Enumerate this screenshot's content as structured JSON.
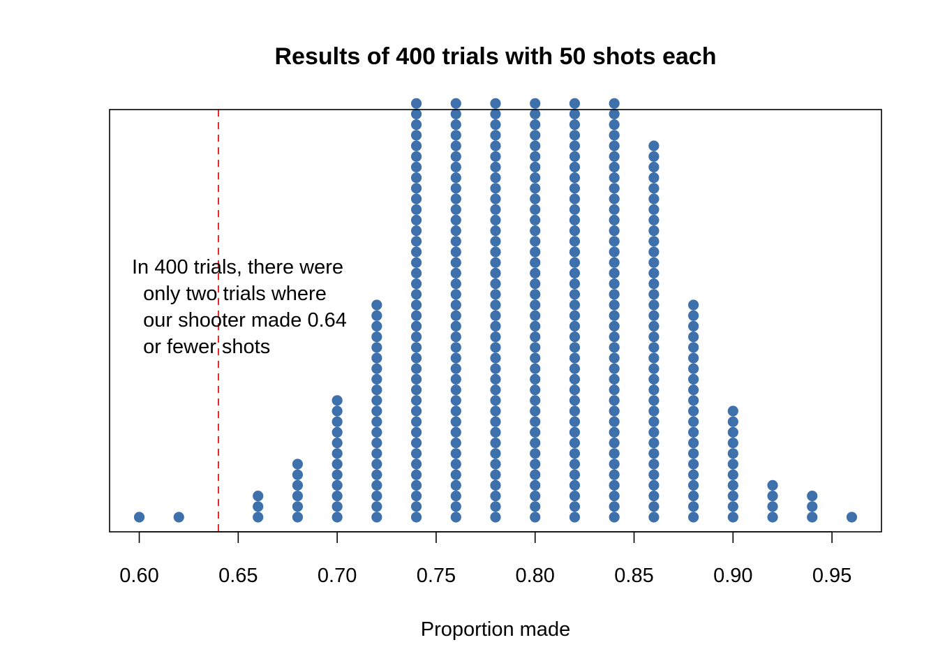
{
  "chart_data": {
    "type": "scatter",
    "title": "Results of 400 trials with 50 shots each",
    "xlabel": "Proportion made",
    "ylabel": "",
    "xlim": [
      0.585,
      0.975
    ],
    "grid": false,
    "x_ticks": [
      0.6,
      0.65,
      0.7,
      0.75,
      0.8,
      0.85,
      0.9,
      0.95
    ],
    "x_tick_labels": [
      "0.60",
      "0.65",
      "0.70",
      "0.75",
      "0.80",
      "0.85",
      "0.90",
      "0.95"
    ],
    "dot_color": "#3E70AC",
    "reference_line": {
      "x": 0.64,
      "style": "dashed",
      "color": "#E8262A"
    },
    "annotation": [
      "In 400 trials, there were",
      " only two trials where",
      " our shooter made 0.64",
      " or fewer shots"
    ],
    "stack_max_visible": 40,
    "dots": [
      {
        "x": 0.6,
        "count": 1
      },
      {
        "x": 0.62,
        "count": 1
      },
      {
        "x": 0.66,
        "count": 3
      },
      {
        "x": 0.68,
        "count": 6
      },
      {
        "x": 0.7,
        "count": 12
      },
      {
        "x": 0.72,
        "count": 21
      },
      {
        "x": 0.74,
        "count": 40
      },
      {
        "x": 0.76,
        "count": 40
      },
      {
        "x": 0.78,
        "count": 40
      },
      {
        "x": 0.8,
        "count": 40
      },
      {
        "x": 0.82,
        "count": 40
      },
      {
        "x": 0.84,
        "count": 40
      },
      {
        "x": 0.86,
        "count": 36
      },
      {
        "x": 0.88,
        "count": 21
      },
      {
        "x": 0.9,
        "count": 11
      },
      {
        "x": 0.92,
        "count": 4
      },
      {
        "x": 0.94,
        "count": 3
      },
      {
        "x": 0.96,
        "count": 1
      }
    ]
  }
}
